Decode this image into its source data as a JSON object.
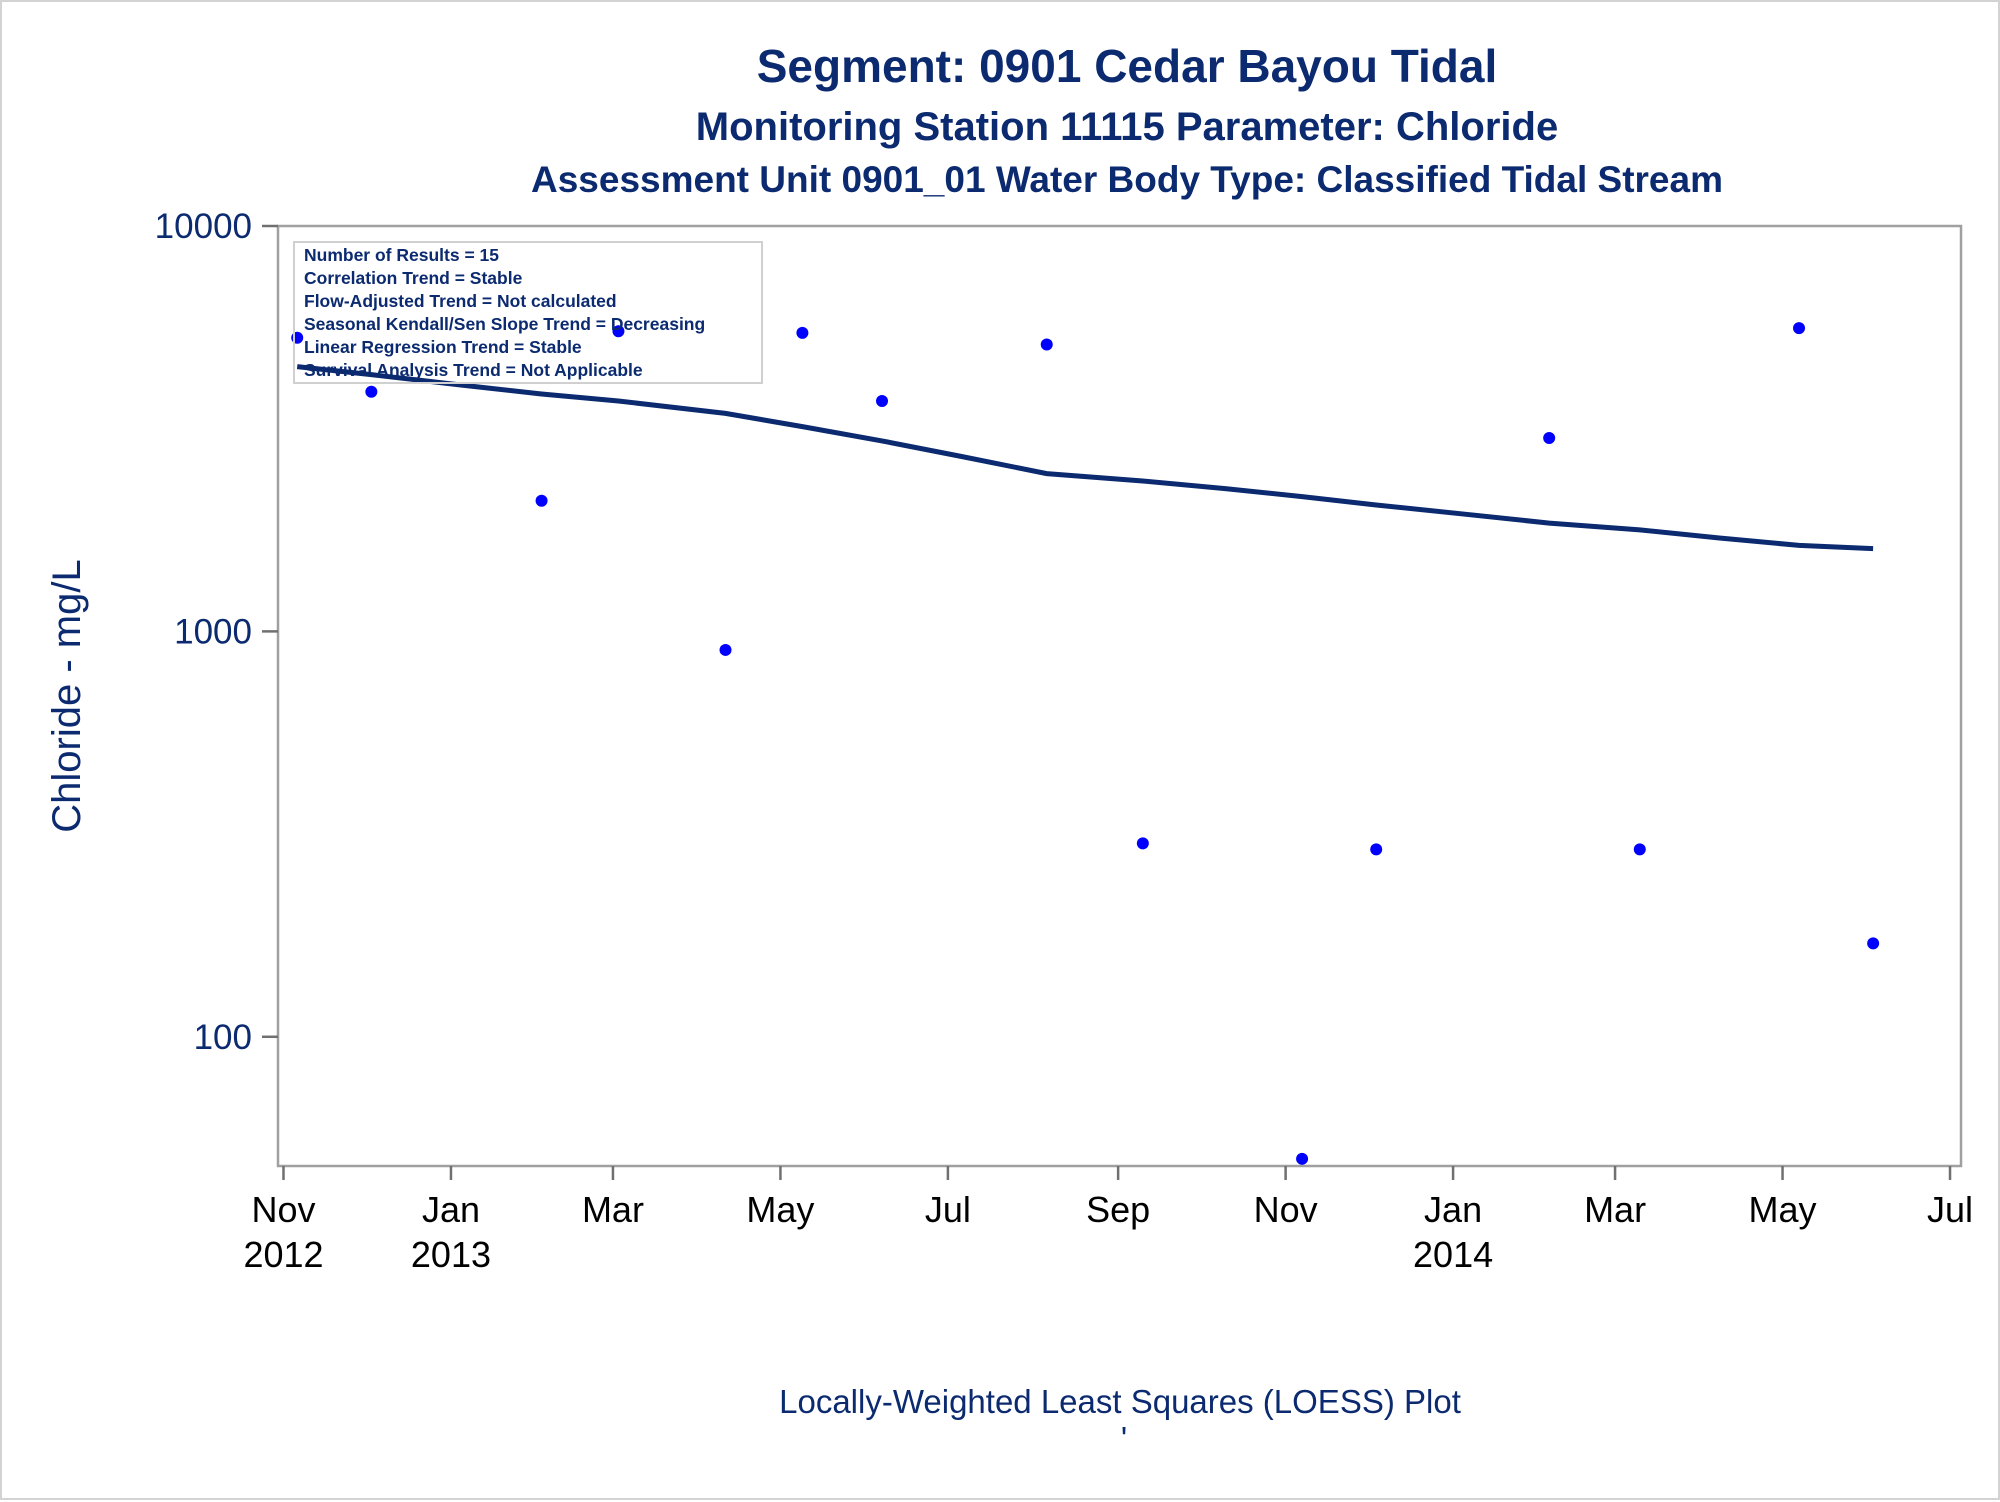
{
  "chart_data": {
    "type": "scatter",
    "title": "Segment: 0901  Cedar Bayou Tidal",
    "subtitle": "Monitoring Station 11115 Parameter: Chloride",
    "subtitle2": "Assessment Unit 0901_01   Water Body Type: Classified Tidal Stream",
    "ylabel": "Chloride - mg/L",
    "footnote": "Locally-Weighted Least Squares (LOESS) Plot",
    "footnote2": "'",
    "y_scale": "log",
    "ylim": [
      48,
      10000
    ],
    "xlim": [
      "2012-10-30",
      "2014-07-05"
    ],
    "y_ticks": [
      {
        "value": 10000,
        "label": "10000"
      },
      {
        "value": 1000,
        "label": "1000"
      },
      {
        "value": 100,
        "label": "100"
      }
    ],
    "x_ticks": [
      {
        "date": "2012-11-01",
        "label": "Nov",
        "year": "2012"
      },
      {
        "date": "2013-01-01",
        "label": "Jan",
        "year": "2013"
      },
      {
        "date": "2013-03-01",
        "label": "Mar",
        "year": ""
      },
      {
        "date": "2013-05-01",
        "label": "May",
        "year": ""
      },
      {
        "date": "2013-07-01",
        "label": "Jul",
        "year": ""
      },
      {
        "date": "2013-09-01",
        "label": "Sep",
        "year": ""
      },
      {
        "date": "2013-11-01",
        "label": "Nov",
        "year": ""
      },
      {
        "date": "2014-01-01",
        "label": "Jan",
        "year": "2014"
      },
      {
        "date": "2014-03-01",
        "label": "Mar",
        "year": ""
      },
      {
        "date": "2014-05-01",
        "label": "May",
        "year": ""
      },
      {
        "date": "2014-07-01",
        "label": "Jul",
        "year": ""
      }
    ],
    "legend": {
      "placement": "top-left",
      "lines": [
        "Number of Results = 15",
        "Correlation Trend = Stable",
        "Flow-Adjusted Trend = Not calculated",
        "Seasonal Kendall/Sen Slope Trend = Decreasing",
        "Linear Regression Trend = Stable",
        "Survival Analysis Trend = Not Applicable"
      ]
    },
    "points": [
      {
        "x": "2012-11-06",
        "y": 5300
      },
      {
        "x": "2012-12-03",
        "y": 3900
      },
      {
        "x": "2013-02-03",
        "y": 2100
      },
      {
        "x": "2013-03-03",
        "y": 5500
      },
      {
        "x": "2013-04-11",
        "y": 900
      },
      {
        "x": "2013-05-09",
        "y": 5450
      },
      {
        "x": "2013-06-07",
        "y": 3700
      },
      {
        "x": "2013-08-06",
        "y": 5100
      },
      {
        "x": "2013-09-10",
        "y": 300
      },
      {
        "x": "2013-11-07",
        "y": 50
      },
      {
        "x": "2013-12-04",
        "y": 290
      },
      {
        "x": "2014-02-05",
        "y": 3000
      },
      {
        "x": "2014-03-10",
        "y": 290
      },
      {
        "x": "2014-05-07",
        "y": 5600
      },
      {
        "x": "2014-06-03",
        "y": 170
      }
    ],
    "series": [
      {
        "type": "line",
        "x": [
          "2012-11-06",
          "2012-12-03",
          "2013-01-05",
          "2013-02-03",
          "2013-03-03",
          "2013-04-11",
          "2013-05-09",
          "2013-06-07",
          "2013-07-06",
          "2013-08-06",
          "2013-09-10",
          "2013-10-10",
          "2013-11-07",
          "2013-12-04",
          "2014-01-04",
          "2014-02-05",
          "2014-03-10",
          "2014-04-08",
          "2014-05-07",
          "2014-06-03"
        ],
        "values": [
          4500,
          4300,
          4050,
          3850,
          3700,
          3450,
          3200,
          2950,
          2700,
          2450,
          2350,
          2250,
          2150,
          2050,
          1950,
          1850,
          1780,
          1700,
          1630,
          1600
        ]
      }
    ]
  }
}
